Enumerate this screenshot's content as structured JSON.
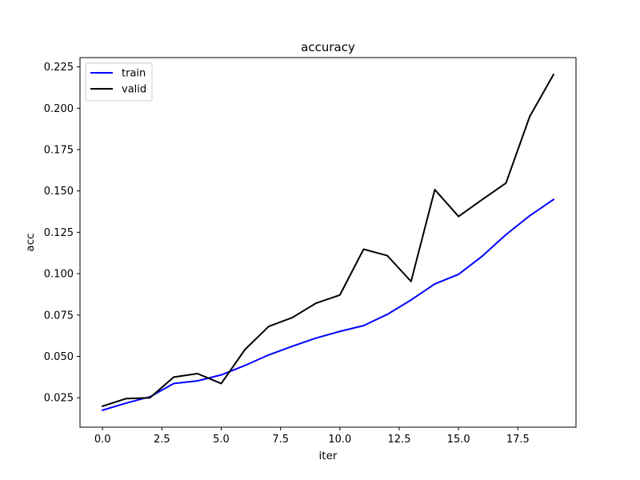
{
  "chart_data": {
    "type": "line",
    "title": "accuracy",
    "xlabel": "iter",
    "ylabel": "acc",
    "xlim": [
      -0.95,
      19.95
    ],
    "ylim": [
      0.0072,
      0.2306
    ],
    "x_ticks": [
      0.0,
      2.5,
      5.0,
      7.5,
      10.0,
      12.5,
      15.0,
      17.5
    ],
    "x_tick_labels": [
      "0.0",
      "2.5",
      "5.0",
      "7.5",
      "10.0",
      "12.5",
      "15.0",
      "17.5"
    ],
    "y_ticks": [
      0.025,
      0.05,
      0.075,
      0.1,
      0.125,
      0.15,
      0.175,
      0.2,
      0.225
    ],
    "y_tick_labels": [
      "0.025",
      "0.050",
      "0.075",
      "0.100",
      "0.125",
      "0.150",
      "0.175",
      "0.200",
      "0.225"
    ],
    "grid": false,
    "legend_position": "top-left",
    "x": [
      0,
      1,
      2,
      3,
      4,
      5,
      6,
      7,
      8,
      9,
      10,
      11,
      12,
      13,
      14,
      15,
      16,
      17,
      18,
      19
    ],
    "series": [
      {
        "name": "train",
        "color": "#0000ff",
        "values": [
          0.0175,
          0.0218,
          0.0256,
          0.0336,
          0.0352,
          0.0388,
          0.0445,
          0.0509,
          0.0561,
          0.0611,
          0.0651,
          0.0686,
          0.0754,
          0.0841,
          0.0938,
          0.0996,
          0.1106,
          0.1236,
          0.135,
          0.1448
        ]
      },
      {
        "name": "valid",
        "color": "#000000",
        "values": [
          0.0199,
          0.0245,
          0.025,
          0.0375,
          0.0396,
          0.0336,
          0.0541,
          0.0681,
          0.0735,
          0.0822,
          0.0871,
          0.1148,
          0.1109,
          0.0953,
          0.1508,
          0.1346,
          0.1448,
          0.1548,
          0.195,
          0.2203
        ]
      }
    ]
  }
}
